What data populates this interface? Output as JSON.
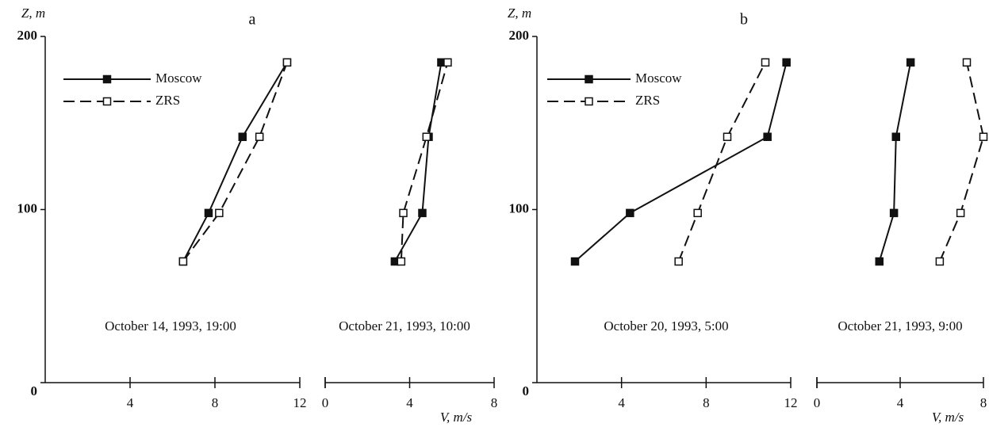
{
  "chart_data": [
    {
      "type": "line",
      "title": "a",
      "ylabel": "Z, m",
      "annotation": "October 14, 1993, 19:00",
      "y": [
        70,
        98,
        142,
        185
      ],
      "ylim": [
        0,
        200
      ],
      "yticks": [
        0,
        100,
        200
      ],
      "xlim": [
        0,
        12
      ],
      "xticks": [
        4,
        8,
        12
      ],
      "legend": "upper left",
      "series": [
        {
          "name": "Moscow",
          "color": "#111111",
          "marker": "filled",
          "values": [
            6.5,
            7.7,
            9.3,
            11.4
          ]
        },
        {
          "name": "ZRS",
          "color": "#111111",
          "marker": "open",
          "values": [
            6.5,
            8.2,
            10.1,
            11.4
          ]
        }
      ]
    },
    {
      "type": "line",
      "xlabel": "V, m/s",
      "annotation": "October 21, 1993, 10:00",
      "y": [
        70,
        98,
        142,
        185
      ],
      "ylim": [
        0,
        200
      ],
      "xlim": [
        0,
        8
      ],
      "xticks": [
        0,
        4,
        8
      ],
      "series": [
        {
          "name": "Moscow",
          "color": "#111111",
          "marker": "filled",
          "values": [
            3.3,
            4.6,
            4.9,
            5.5
          ]
        },
        {
          "name": "ZRS",
          "color": "#111111",
          "marker": "open",
          "values": [
            3.6,
            3.7,
            4.8,
            5.8
          ]
        }
      ]
    },
    {
      "type": "line",
      "title": "b",
      "ylabel": "Z, m",
      "annotation": "October 20, 1993, 5:00",
      "y": [
        70,
        98,
        142,
        185
      ],
      "ylim": [
        0,
        200
      ],
      "yticks": [
        0,
        100,
        200
      ],
      "xlim": [
        0,
        12
      ],
      "xticks": [
        4,
        8,
        12
      ],
      "legend": "upper left",
      "series": [
        {
          "name": "Moscow",
          "color": "#111111",
          "marker": "filled",
          "values": [
            1.8,
            4.4,
            10.9,
            11.8
          ]
        },
        {
          "name": "ZRS",
          "color": "#111111",
          "marker": "open",
          "values": [
            6.7,
            7.6,
            9.0,
            10.8
          ]
        }
      ]
    },
    {
      "type": "line",
      "xlabel": "V, m/s",
      "annotation": "October 21, 1993, 9:00",
      "y": [
        70,
        98,
        142,
        185
      ],
      "ylim": [
        0,
        200
      ],
      "xlim": [
        0,
        8
      ],
      "xticks": [
        0,
        4,
        8
      ],
      "series": [
        {
          "name": "Moscow",
          "color": "#111111",
          "marker": "filled",
          "values": [
            3.0,
            3.7,
            3.8,
            4.5
          ]
        },
        {
          "name": "ZRS",
          "color": "#111111",
          "marker": "open",
          "values": [
            5.9,
            6.9,
            8.0,
            7.2
          ]
        }
      ]
    }
  ]
}
